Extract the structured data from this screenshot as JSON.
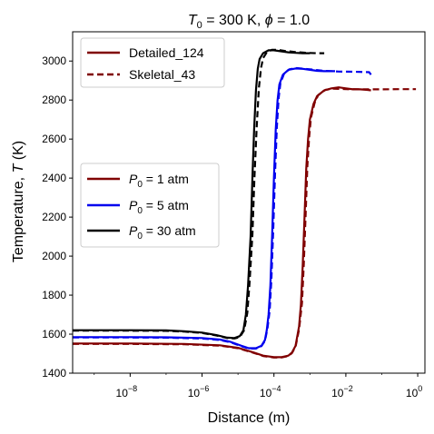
{
  "chart_data": {
    "type": "line",
    "title_parts": {
      "t": "T",
      "sub": "0",
      "rest": " = 300 K, ",
      "phi": "ϕ",
      "tail": " = 1.0"
    },
    "xlabel": "Distance (m)",
    "ylabel_parts": {
      "pre": "Temperature, ",
      "sym": "T",
      "post": " (K)"
    },
    "x_scale": "log",
    "xlim_log10": [
      -9.6,
      0.2
    ],
    "ylim": [
      1400,
      3150
    ],
    "x_ticks": [
      {
        "base": "10",
        "exp": "−8",
        "log10": -8
      },
      {
        "base": "10",
        "exp": "−6",
        "log10": -6
      },
      {
        "base": "10",
        "exp": "−4",
        "log10": -4
      },
      {
        "base": "10",
        "exp": "−2",
        "log10": -2
      },
      {
        "base": "10",
        "exp": "0",
        "log10": 0
      }
    ],
    "y_ticks": [
      1400,
      1600,
      1800,
      2000,
      2200,
      2400,
      2600,
      2800,
      3000
    ],
    "legend_mechanism": {
      "placement": "upper-left",
      "entries": [
        {
          "label": "Detailed_124",
          "style": "solid",
          "color": "#800000"
        },
        {
          "label": "Skeletal_43",
          "style": "dashed",
          "color": "#800000"
        }
      ]
    },
    "legend_pressure": {
      "placement": "center-left",
      "entries": [
        {
          "sym": "P",
          "sub": "0",
          "rest": " = 1 atm",
          "color": "#800000"
        },
        {
          "sym": "P",
          "sub": "0",
          "rest": " = 5 atm",
          "color": "#0000ee"
        },
        {
          "sym": "P",
          "sub": "0",
          "rest": " = 30 atm",
          "color": "#000000"
        }
      ]
    },
    "series": [
      {
        "pressure": "1 atm",
        "mechanism": "Detailed_124",
        "style": "solid",
        "color": "#800000",
        "points": [
          [
            -9.6,
            1552
          ],
          [
            -8,
            1552
          ],
          [
            -6.5,
            1550
          ],
          [
            -5.5,
            1543
          ],
          [
            -5,
            1530
          ],
          [
            -4.6,
            1508
          ],
          [
            -4.3,
            1490
          ],
          [
            -4.0,
            1482
          ],
          [
            -3.8,
            1482
          ],
          [
            -3.6,
            1490
          ],
          [
            -3.5,
            1505
          ],
          [
            -3.4,
            1540
          ],
          [
            -3.3,
            1640
          ],
          [
            -3.25,
            1750
          ],
          [
            -3.2,
            1950
          ],
          [
            -3.15,
            2200
          ],
          [
            -3.1,
            2450
          ],
          [
            -3.05,
            2600
          ],
          [
            -3.0,
            2700
          ],
          [
            -2.9,
            2780
          ],
          [
            -2.8,
            2820
          ],
          [
            -2.6,
            2850
          ],
          [
            -2.4,
            2860
          ],
          [
            -2.2,
            2865
          ],
          [
            -2.0,
            2860
          ],
          [
            -1.8,
            2855
          ],
          [
            -1.6,
            2855
          ],
          [
            -1.4,
            2852
          ],
          [
            -1.3,
            2850
          ]
        ]
      },
      {
        "pressure": "1 atm",
        "mechanism": "Skeletal_43",
        "style": "dashed",
        "color": "#800000",
        "points": [
          [
            -9.6,
            1550
          ],
          [
            -8,
            1550
          ],
          [
            -6.5,
            1548
          ],
          [
            -5.5,
            1541
          ],
          [
            -5,
            1528
          ],
          [
            -4.6,
            1506
          ],
          [
            -4.3,
            1488
          ],
          [
            -4.0,
            1480
          ],
          [
            -3.8,
            1480
          ],
          [
            -3.6,
            1488
          ],
          [
            -3.5,
            1503
          ],
          [
            -3.4,
            1535
          ],
          [
            -3.3,
            1625
          ],
          [
            -3.22,
            1760
          ],
          [
            -3.17,
            1960
          ],
          [
            -3.12,
            2210
          ],
          [
            -3.07,
            2460
          ],
          [
            -3.02,
            2610
          ],
          [
            -2.97,
            2710
          ],
          [
            -2.87,
            2785
          ],
          [
            -2.77,
            2825
          ],
          [
            -2.57,
            2852
          ],
          [
            -2.37,
            2858
          ],
          [
            -2.0,
            2856
          ],
          [
            -1.5,
            2855
          ],
          [
            -1.0,
            2855
          ],
          [
            -0.5,
            2856
          ],
          [
            -0.05,
            2856
          ]
        ]
      },
      {
        "pressure": "5 atm",
        "mechanism": "Detailed_124",
        "style": "solid",
        "color": "#0000ee",
        "points": [
          [
            -9.6,
            1585
          ],
          [
            -8,
            1585
          ],
          [
            -7,
            1584
          ],
          [
            -6,
            1580
          ],
          [
            -5.5,
            1572
          ],
          [
            -5.2,
            1560
          ],
          [
            -4.9,
            1540
          ],
          [
            -4.7,
            1528
          ],
          [
            -4.5,
            1528
          ],
          [
            -4.35,
            1540
          ],
          [
            -4.25,
            1570
          ],
          [
            -4.2,
            1620
          ],
          [
            -4.15,
            1700
          ],
          [
            -4.1,
            1850
          ],
          [
            -4.05,
            2100
          ],
          [
            -4.0,
            2400
          ],
          [
            -3.95,
            2650
          ],
          [
            -3.9,
            2800
          ],
          [
            -3.85,
            2880
          ],
          [
            -3.75,
            2930
          ],
          [
            -3.6,
            2955
          ],
          [
            -3.4,
            2962
          ],
          [
            -3.2,
            2960
          ],
          [
            -3.0,
            2955
          ],
          [
            -2.8,
            2950
          ],
          [
            -2.6,
            2948
          ],
          [
            -2.4,
            2948
          ],
          [
            -2.3,
            2948
          ]
        ]
      },
      {
        "pressure": "5 atm",
        "mechanism": "Skeletal_43",
        "style": "dashed",
        "color": "#0000ee",
        "points": [
          [
            -9.6,
            1583
          ],
          [
            -8,
            1583
          ],
          [
            -7,
            1582
          ],
          [
            -6,
            1578
          ],
          [
            -5.5,
            1570
          ],
          [
            -5.2,
            1558
          ],
          [
            -4.9,
            1538
          ],
          [
            -4.7,
            1526
          ],
          [
            -4.5,
            1526
          ],
          [
            -4.35,
            1538
          ],
          [
            -4.25,
            1565
          ],
          [
            -4.18,
            1630
          ],
          [
            -4.12,
            1720
          ],
          [
            -4.07,
            1880
          ],
          [
            -4.02,
            2130
          ],
          [
            -3.97,
            2420
          ],
          [
            -3.92,
            2660
          ],
          [
            -3.87,
            2810
          ],
          [
            -3.82,
            2885
          ],
          [
            -3.72,
            2935
          ],
          [
            -3.57,
            2958
          ],
          [
            -3.37,
            2964
          ],
          [
            -3.0,
            2958
          ],
          [
            -2.6,
            2950
          ],
          [
            -2.2,
            2946
          ],
          [
            -1.8,
            2945
          ],
          [
            -1.5,
            2944
          ],
          [
            -1.35,
            2943
          ],
          [
            -1.3,
            2930
          ]
        ]
      },
      {
        "pressure": "30 atm",
        "mechanism": "Detailed_124",
        "style": "solid",
        "color": "#000000",
        "points": [
          [
            -9.6,
            1620
          ],
          [
            -8,
            1620
          ],
          [
            -7,
            1619
          ],
          [
            -6.5,
            1615
          ],
          [
            -6,
            1608
          ],
          [
            -5.6,
            1595
          ],
          [
            -5.3,
            1582
          ],
          [
            -5.1,
            1580
          ],
          [
            -4.95,
            1590
          ],
          [
            -4.85,
            1620
          ],
          [
            -4.78,
            1700
          ],
          [
            -4.72,
            1850
          ],
          [
            -4.65,
            2100
          ],
          [
            -4.6,
            2400
          ],
          [
            -4.55,
            2650
          ],
          [
            -4.5,
            2850
          ],
          [
            -4.45,
            2960
          ],
          [
            -4.4,
            3010
          ],
          [
            -4.3,
            3040
          ],
          [
            -4.15,
            3055
          ],
          [
            -4.0,
            3055
          ],
          [
            -3.8,
            3050
          ],
          [
            -3.6,
            3045
          ],
          [
            -3.4,
            3042
          ],
          [
            -3.2,
            3040
          ],
          [
            -3.0,
            3040
          ]
        ]
      },
      {
        "pressure": "30 atm",
        "mechanism": "Skeletal_43",
        "style": "dashed",
        "color": "#000000",
        "points": [
          [
            -9.6,
            1618
          ],
          [
            -8,
            1618
          ],
          [
            -7,
            1617
          ],
          [
            -6.5,
            1613
          ],
          [
            -6,
            1606
          ],
          [
            -5.6,
            1593
          ],
          [
            -5.3,
            1580
          ],
          [
            -5.1,
            1578
          ],
          [
            -4.95,
            1585
          ],
          [
            -4.83,
            1620
          ],
          [
            -4.74,
            1710
          ],
          [
            -4.68,
            1860
          ],
          [
            -4.6,
            2110
          ],
          [
            -4.54,
            2410
          ],
          [
            -4.48,
            2660
          ],
          [
            -4.42,
            2860
          ],
          [
            -4.36,
            2965
          ],
          [
            -4.3,
            3015
          ],
          [
            -4.2,
            3045
          ],
          [
            -4.05,
            3058
          ],
          [
            -3.9,
            3058
          ],
          [
            -3.7,
            3052
          ],
          [
            -3.4,
            3046
          ],
          [
            -3.1,
            3042
          ],
          [
            -2.8,
            3040
          ],
          [
            -2.6,
            3040
          ]
        ]
      }
    ]
  }
}
